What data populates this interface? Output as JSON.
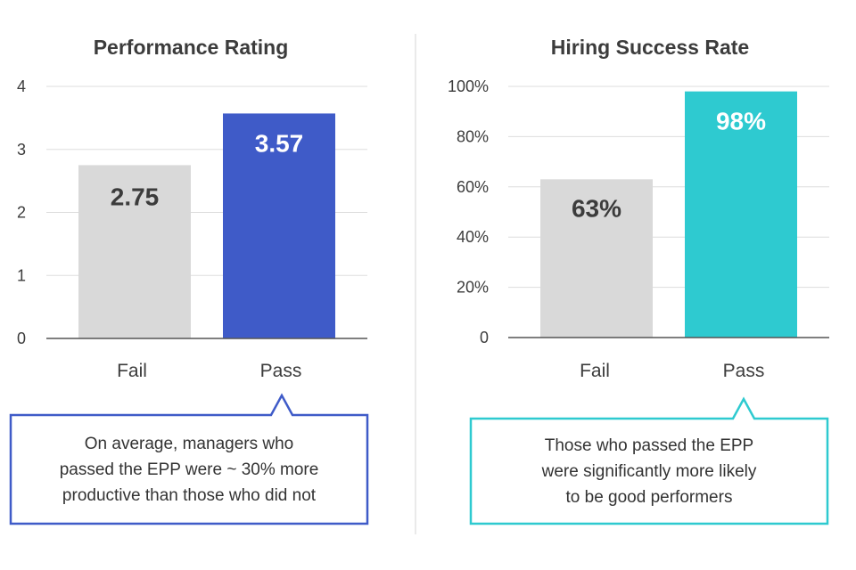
{
  "colors": {
    "fail_bar": "#d9d9d9",
    "pass_left": "#3f5bc8",
    "pass_right": "#2ecad0",
    "gridline": "#dddddd",
    "axis": "#555555",
    "text": "#3c3c3c",
    "callout_left_border": "#3f5bc8",
    "callout_right_border": "#2ecad0",
    "divider": "#e4e4e4"
  },
  "chart_data": [
    {
      "type": "bar",
      "title": "Performance Rating",
      "categories": [
        "Fail",
        "Pass"
      ],
      "values": [
        2.75,
        3.57
      ],
      "value_labels": [
        "2.75",
        "3.57"
      ],
      "yticks": [
        0,
        1,
        2,
        3,
        4
      ],
      "ytick_labels": [
        "0",
        "1",
        "2",
        "3",
        "4"
      ],
      "ylim": [
        0,
        4
      ],
      "grid": true
    },
    {
      "type": "bar",
      "title": "Hiring Success Rate",
      "categories": [
        "Fail",
        "Pass"
      ],
      "values": [
        63,
        98
      ],
      "value_labels": [
        "63%",
        "98%"
      ],
      "yticks": [
        0,
        20,
        40,
        60,
        80,
        100
      ],
      "ytick_labels": [
        "0",
        "20%",
        "40%",
        "60%",
        "80%",
        "100%"
      ],
      "ylim": [
        0,
        100
      ],
      "grid": true
    }
  ],
  "callouts": {
    "left": [
      "On average, managers who",
      "passed the EPP were ~ 30% more",
      "productive than those who did not"
    ],
    "right": [
      "Those who passed the EPP",
      "were significantly more likely",
      "to be good performers"
    ]
  }
}
